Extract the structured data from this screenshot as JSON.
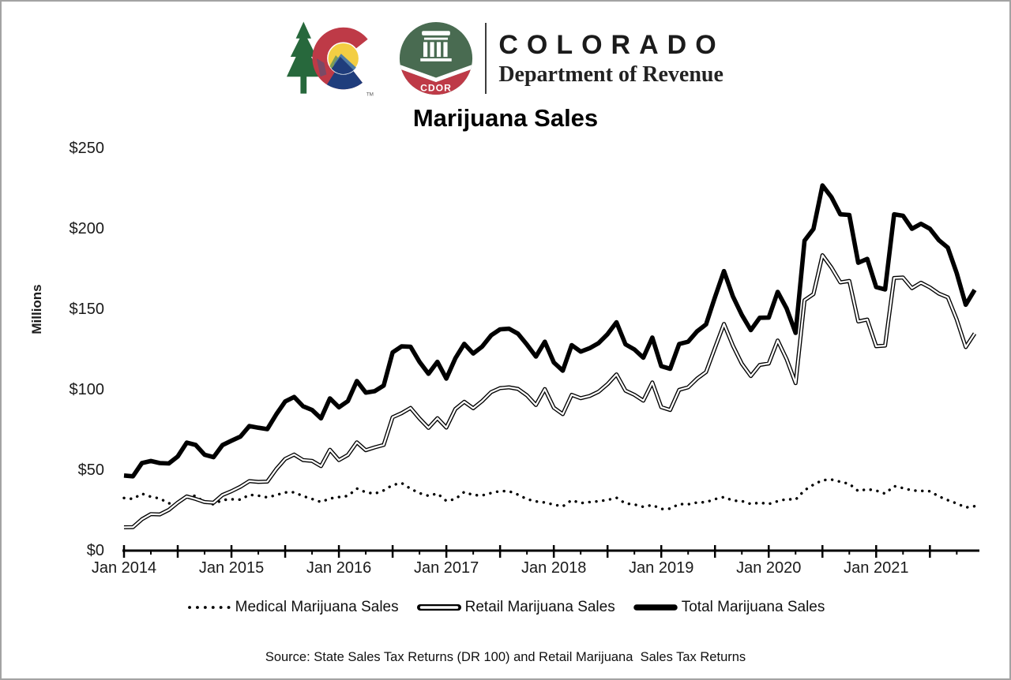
{
  "header": {
    "brand_name": "COLORADO",
    "brand_department": "Department of Revenue",
    "cdor_badge": "CDOR",
    "trademark": "TM"
  },
  "source_note": "Source: State Sales Tax Returns (DR 100) and Retail Marijuana  Sales Tax Returns",
  "chart_data": {
    "type": "line",
    "title": "Marijuana Sales",
    "ylabel": "Millions",
    "ylim": [
      0,
      250
    ],
    "y_ticks": [
      "$0",
      "$50",
      "$100",
      "$150",
      "$200",
      "$250"
    ],
    "x_tick_labels": [
      "Jan 2014",
      "Jan 2015",
      "Jan 2016",
      "Jan 2017",
      "Jan 2018",
      "Jan 2019",
      "Jan 2020",
      "Jan 2021"
    ],
    "x_unit": "month",
    "x_range": [
      "Jan 2014",
      "Dec 2021"
    ],
    "grid": false,
    "legend_position": "bottom",
    "series": [
      {
        "name": "Medical Marijuana Sales",
        "style": "dotted",
        "values": [
          32.2,
          31.6,
          34.9,
          33.0,
          31.9,
          28.9,
          28.7,
          33.4,
          33.6,
          29.4,
          28.3,
          31.0,
          31.4,
          31.2,
          34.2,
          33.7,
          32.6,
          34.0,
          35.7,
          35.8,
          33.4,
          31.6,
          29.7,
          31.9,
          32.8,
          33.5,
          38.1,
          35.8,
          34.9,
          36.9,
          40.3,
          41.5,
          38.0,
          35.2,
          33.6,
          35.0,
          30.4,
          31.5,
          36.0,
          34.0,
          33.8,
          35.3,
          36.5,
          36.4,
          34.3,
          31.5,
          30.1,
          29.4,
          28.1,
          27.0,
          30.9,
          29.0,
          29.7,
          30.2,
          31.0,
          32.4,
          28.8,
          28.2,
          26.7,
          27.9,
          25.4,
          25.6,
          28.5,
          28.3,
          29.4,
          29.6,
          31.5,
          32.8,
          30.6,
          30.3,
          28.5,
          29.3,
          28.5,
          30.2,
          31.5,
          31.2,
          37.0,
          40.5,
          43.3,
          43.7,
          42.3,
          41.0,
          36.5,
          37.7,
          36.8,
          34.9,
          39.6,
          38.4,
          36.9,
          36.6,
          36.4,
          33.2,
          30.9,
          28.8,
          26.3,
          27.1
        ]
      },
      {
        "name": "Retail Marijuana Sales",
        "style": "double",
        "values": [
          14.0,
          14.1,
          19.0,
          22.2,
          22.0,
          24.8,
          29.3,
          33.2,
          31.6,
          29.7,
          29.3,
          34.1,
          36.4,
          39.2,
          42.7,
          42.2,
          42.4,
          50.1,
          56.5,
          59.2,
          55.8,
          55.3,
          52.0,
          62.2,
          55.8,
          58.9,
          66.8,
          61.9,
          63.7,
          65.2,
          82.4,
          84.9,
          88.2,
          81.6,
          75.8,
          81.8,
          76.0,
          87.5,
          92.0,
          88.0,
          92.5,
          98.0,
          100.5,
          101.0,
          100.0,
          96.0,
          90.0,
          99.9,
          88.3,
          84.3,
          96.3,
          94.2,
          95.6,
          98.3,
          103.0,
          109.0,
          98.9,
          96.3,
          92.7,
          104.0,
          88.7,
          86.9,
          99.4,
          101.0,
          106.4,
          110.5,
          125.5,
          140.4,
          126.9,
          115.7,
          108.0,
          114.9,
          115.8,
          130.1,
          118.5,
          103.6,
          155.1,
          158.9,
          183.1,
          175.5,
          166.2,
          167.1,
          141.9,
          143.1,
          126.5,
          126.9,
          168.9,
          169.2,
          162.6,
          166.0,
          163.1,
          159.2,
          156.9,
          143.1,
          126.0,
          134.4
        ]
      },
      {
        "name": "Total Marijuana Sales",
        "style": "thick",
        "values": [
          46.2,
          45.7,
          53.9,
          55.2,
          53.9,
          53.7,
          58.0,
          66.6,
          65.2,
          59.1,
          57.6,
          65.1,
          67.8,
          70.4,
          76.9,
          75.9,
          75.0,
          84.1,
          92.2,
          95.0,
          89.2,
          86.9,
          81.7,
          94.1,
          88.6,
          92.4,
          104.9,
          97.7,
          98.6,
          102.1,
          122.7,
          126.4,
          126.2,
          116.8,
          109.4,
          116.8,
          106.4,
          119.0,
          128.0,
          122.0,
          126.3,
          133.3,
          137.0,
          137.4,
          134.3,
          127.5,
          120.1,
          129.3,
          116.4,
          111.3,
          127.2,
          123.2,
          125.3,
          128.5,
          134.0,
          141.4,
          127.7,
          124.5,
          119.4,
          131.9,
          114.1,
          112.5,
          127.9,
          129.3,
          135.8,
          140.1,
          157.0,
          173.2,
          157.5,
          146.0,
          136.5,
          144.2,
          144.3,
          160.3,
          150.0,
          134.8,
          192.1,
          199.4,
          226.4,
          219.2,
          208.5,
          208.1,
          178.4,
          180.8,
          163.3,
          161.8,
          208.5,
          207.6,
          199.5,
          202.6,
          199.5,
          192.4,
          187.8,
          171.9,
          152.3,
          161.5
        ]
      }
    ]
  },
  "colors": {
    "line_black": "#000000",
    "state_logo_green": "#27683C",
    "state_logo_red": "#BE3A47",
    "state_logo_navy": "#1F3D7C",
    "state_logo_yellow": "#F3CE43",
    "cdor_green": "#496B51",
    "cdor_red": "#BE3A47",
    "frame_border": "#a3a3a3"
  }
}
